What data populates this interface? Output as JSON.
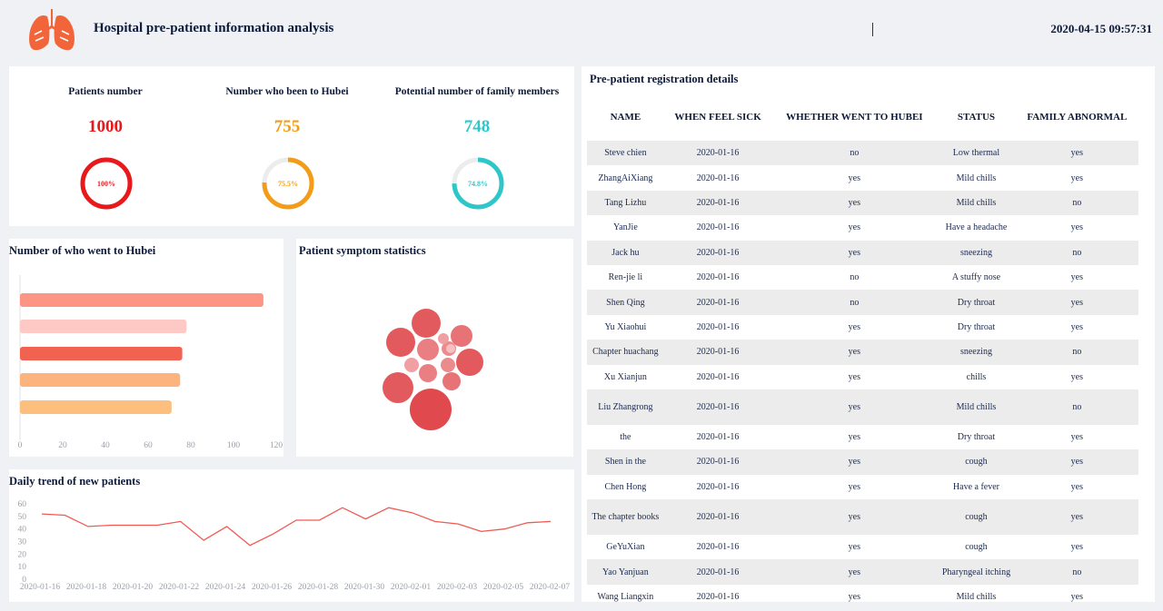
{
  "header": {
    "title": "Hospital pre-patient information analysis",
    "datetime": "2020-04-15 09:57:31",
    "logo_icon": "lungs-icon"
  },
  "summary": {
    "stats": [
      {
        "label": "Patients number",
        "value": "1000",
        "percent_label": "100%",
        "percent": 100,
        "color": "#e8181b"
      },
      {
        "label": "Number who been to Hubei",
        "value": "755",
        "percent_label": "75.5%",
        "percent": 75.5,
        "color": "#f39c18"
      },
      {
        "label": "Potential number of family members",
        "value": "748",
        "percent_label": "74.8%",
        "percent": 74.8,
        "color": "#2ec7c9"
      }
    ]
  },
  "hubei_chart": {
    "title": "Number of who went to Hubei",
    "chart_data": {
      "type": "bar",
      "orientation": "horizontal",
      "values": [
        114,
        78,
        76,
        75,
        71
      ],
      "colors": [
        "#fc9583",
        "#fec9c4",
        "#f16250",
        "#fdb47c",
        "#fdbf7d"
      ],
      "xlim": [
        0,
        120
      ],
      "xticks": [
        "0",
        "20",
        "40",
        "60",
        "80",
        "100",
        "120"
      ]
    }
  },
  "symptom_chart": {
    "title": "Patient symptom statistics"
  },
  "trend_chart": {
    "title": "Daily trend of new patients",
    "chart_data": {
      "type": "line",
      "color": "#f05a53",
      "yticks": [
        "0",
        "10",
        "20",
        "30",
        "40",
        "50",
        "60"
      ],
      "ylim": [
        0,
        60
      ],
      "x_labels": [
        "2020-01-16",
        "2020-01-18",
        "2020-01-20",
        "2020-01-22",
        "2020-01-24",
        "2020-01-26",
        "2020-01-28",
        "2020-01-30",
        "2020-02-01",
        "2020-02-03",
        "2020-02-05",
        "2020-02-07"
      ],
      "values": [
        52,
        51,
        42,
        43,
        43,
        43,
        46,
        31,
        42,
        27,
        36,
        47,
        47,
        57,
        48,
        57,
        53,
        46,
        44,
        38,
        40,
        45,
        46
      ]
    }
  },
  "details": {
    "title": "Pre-patient registration details",
    "columns": [
      "NAME",
      "WHEN FEEL SICK",
      "WHETHER WENT TO HUBEI",
      "STATUS",
      "FAMILY ABNORMAL"
    ],
    "rows": [
      [
        "Steve chien",
        "2020-01-16",
        "no",
        "Low thermal",
        "yes"
      ],
      [
        "ZhangAiXiang",
        "2020-01-16",
        "yes",
        "Mild chills",
        "yes"
      ],
      [
        "Tang Lizhu",
        "2020-01-16",
        "yes",
        "Mild chills",
        "no"
      ],
      [
        "YanJie",
        "2020-01-16",
        "yes",
        "Have a headache",
        "yes"
      ],
      [
        "Jack hu",
        "2020-01-16",
        "yes",
        "sneezing",
        "no"
      ],
      [
        "Ren-jie li",
        "2020-01-16",
        "no",
        "A stuffy nose",
        "yes"
      ],
      [
        "Shen Qing",
        "2020-01-16",
        "no",
        "Dry throat",
        "yes"
      ],
      [
        "Yu Xiaohui",
        "2020-01-16",
        "yes",
        "Dry throat",
        "yes"
      ],
      [
        "Chapter huachang",
        "2020-01-16",
        "yes",
        "sneezing",
        "no"
      ],
      [
        "Xu Xianjun",
        "2020-01-16",
        "yes",
        "chills",
        "yes"
      ],
      [
        "Liu Zhangrong",
        "2020-01-16",
        "yes",
        "Mild chills",
        "no"
      ],
      [
        "the",
        "2020-01-16",
        "yes",
        "Dry throat",
        "yes"
      ],
      [
        "Shen in the",
        "2020-01-16",
        "yes",
        "cough",
        "yes"
      ],
      [
        "Chen Hong",
        "2020-01-16",
        "yes",
        "Have a fever",
        "yes"
      ],
      [
        "The chapter books",
        "2020-01-16",
        "yes",
        "cough",
        "yes"
      ],
      [
        "GeYuXian",
        "2020-01-16",
        "yes",
        "cough",
        "yes"
      ],
      [
        "Yao Yanjuan",
        "2020-01-16",
        "yes",
        "Pharyngeal itching",
        "no"
      ],
      [
        "Wang Liangxin",
        "2020-01-16",
        "yes",
        "Mild chills",
        "yes"
      ]
    ]
  }
}
